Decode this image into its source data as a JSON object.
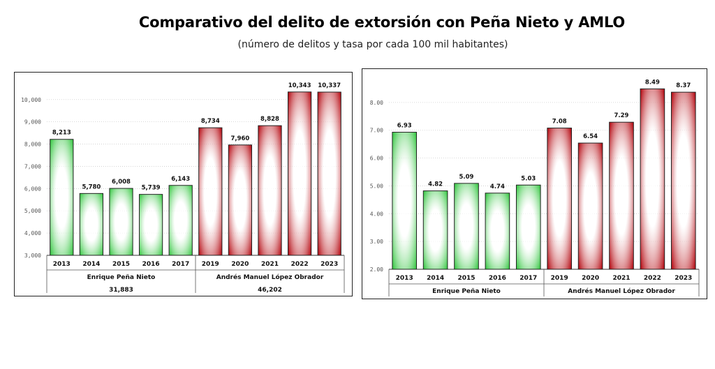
{
  "title": "Comparativo del delito de extorsión con Peña Nieto y AMLO",
  "subtitle": "(número de delitos y tasa por cada 100 mil habitantes)",
  "colors": {
    "green": "#3ec94a",
    "red": "#b8141c",
    "highlight": "#ffffff"
  },
  "chart_data": [
    {
      "type": "bar",
      "title": "",
      "categories": [
        "2013",
        "2014",
        "2015",
        "2016",
        "2017",
        "2019",
        "2020",
        "2021",
        "2022",
        "2023"
      ],
      "values": [
        8213,
        5780,
        6008,
        5739,
        6143,
        8734,
        7960,
        8828,
        10343,
        10337
      ],
      "value_labels": [
        "8,213",
        "5,780",
        "6,008",
        "5,739",
        "6,143",
        "8,734",
        "7,960",
        "8,828",
        "10,343",
        "10,337"
      ],
      "ylim": [
        3000,
        10400
      ],
      "yticks": [
        3000,
        4000,
        5000,
        6000,
        7000,
        8000,
        9000,
        10000
      ],
      "ytick_labels": [
        "3,000",
        "4,000",
        "5,000",
        "6,000",
        "7,000",
        "8,000",
        "9,000",
        "10,000"
      ],
      "grid": true,
      "groups": [
        {
          "name": "Enrique Peña Nieto",
          "total": "31,883",
          "color": "green",
          "count": 5
        },
        {
          "name": "Andrés Manuel López Obrador",
          "total": "46,202",
          "color": "red",
          "count": 5
        }
      ]
    },
    {
      "type": "bar",
      "title": "",
      "categories": [
        "2013",
        "2014",
        "2015",
        "2016",
        "2017",
        "2019",
        "2020",
        "2021",
        "2022",
        "2023"
      ],
      "values": [
        6.93,
        4.82,
        5.09,
        4.74,
        5.03,
        7.08,
        6.54,
        7.29,
        8.49,
        8.37
      ],
      "value_labels": [
        "6.93",
        "4.82",
        "5.09",
        "4.74",
        "5.03",
        "7.08",
        "6.54",
        "7.29",
        "8.49",
        "8.37"
      ],
      "ylim": [
        2.0,
        8.7
      ],
      "yticks": [
        2,
        3,
        4,
        5,
        6,
        7,
        8
      ],
      "ytick_labels": [
        "2.00",
        "3.00",
        "4.00",
        "5.00",
        "6.00",
        "7.00",
        "8.00"
      ],
      "grid": true,
      "groups": [
        {
          "name": "Enrique Peña Nieto",
          "total": "",
          "color": "green",
          "count": 5
        },
        {
          "name": "Andrés Manuel López Obrador",
          "total": "",
          "color": "red",
          "count": 5
        }
      ]
    }
  ]
}
